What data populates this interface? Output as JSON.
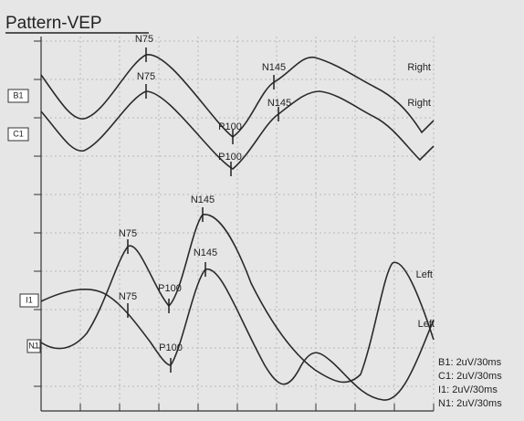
{
  "title": "Pattern-VEP",
  "channels": [
    "B1",
    "C1",
    "I1",
    "N1"
  ],
  "peaks": [
    "N75",
    "N75",
    "N145",
    "N145",
    "P100",
    "P100",
    "N145",
    "N75",
    "P100",
    "N75",
    "N145",
    "P100"
  ],
  "side_labels": [
    "Right",
    "Right",
    "Left",
    "Left"
  ],
  "legend": [
    "B1: 2uV/30ms",
    "C1: 2uV/30ms",
    "I1: 2uV/30ms",
    "N1: 2uV/30ms"
  ]
}
